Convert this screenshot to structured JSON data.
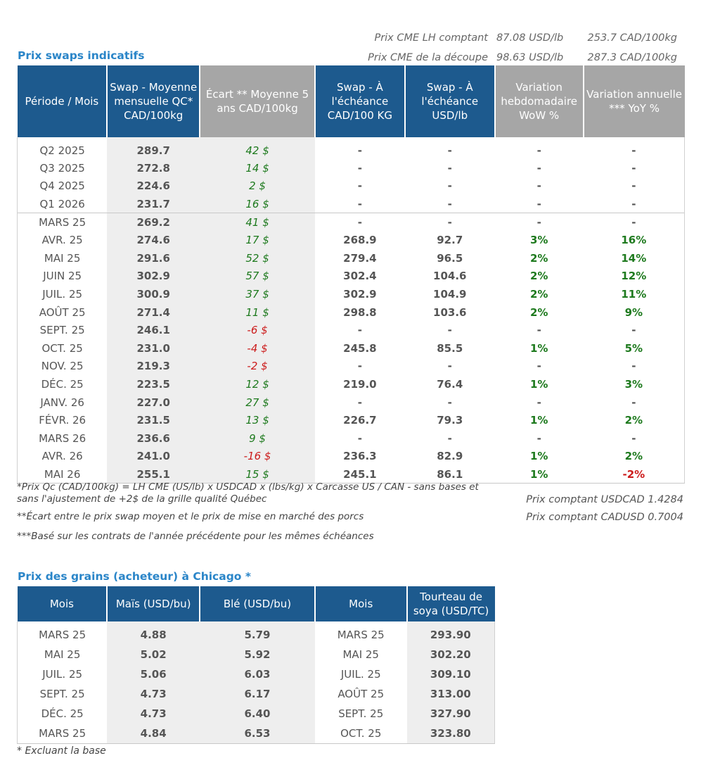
{
  "top_prices": [
    {
      "label": "Prix CME LH comptant",
      "usd": "87.08 USD/lb",
      "cad": "253.7 CAD/100kg"
    },
    {
      "label": "Prix CME de la découpe",
      "usd": "98.63 USD/lb",
      "cad": "287.3 CAD/100kg"
    }
  ],
  "swaps": {
    "title": "Prix swaps indicatifs",
    "headers": [
      "Période / Mois",
      "Swap - Moyenne mensuelle QC* CAD/100kg",
      "Écart ** Moyenne 5 ans CAD/100kg",
      "Swap - À l'échéance CAD/100 KG",
      "Swap - À l'échéance USD/lb",
      "Variation hebdomadaire WoW %",
      "Variation annuelle *** YoY %"
    ],
    "rows": [
      [
        "Q2 2025",
        "289.7",
        "42 $",
        "-",
        "-",
        "-",
        "-"
      ],
      [
        "Q3 2025",
        "272.8",
        "14 $",
        "-",
        "-",
        "-",
        "-"
      ],
      [
        "Q4 2025",
        "224.6",
        "2 $",
        "-",
        "-",
        "-",
        "-"
      ],
      [
        "Q1 2026",
        "231.7",
        "16 $",
        "-",
        "-",
        "-",
        "-"
      ],
      [
        "MARS 25",
        "269.2",
        "41 $",
        "-",
        "-",
        "-",
        "-"
      ],
      [
        "AVR. 25",
        "274.6",
        "17 $",
        "268.9",
        "92.7",
        "3%",
        "16%"
      ],
      [
        "MAI 25",
        "291.6",
        "52 $",
        "279.4",
        "96.5",
        "2%",
        "14%"
      ],
      [
        "JUIN 25",
        "302.9",
        "57 $",
        "302.4",
        "104.6",
        "2%",
        "12%"
      ],
      [
        "JUIL. 25",
        "300.9",
        "37 $",
        "302.9",
        "104.9",
        "2%",
        "11%"
      ],
      [
        "AOÛT 25",
        "271.4",
        "11 $",
        "298.8",
        "103.6",
        "2%",
        "9%"
      ],
      [
        "SEPT. 25",
        "246.1",
        "-6 $",
        "-",
        "-",
        "-",
        "-"
      ],
      [
        "OCT. 25",
        "231.0",
        "-4 $",
        "245.8",
        "85.5",
        "1%",
        "5%"
      ],
      [
        "NOV. 25",
        "219.3",
        "-2 $",
        "-",
        "-",
        "-",
        "-"
      ],
      [
        "DÉC. 25",
        "223.5",
        "12 $",
        "219.0",
        "76.4",
        "1%",
        "3%"
      ],
      [
        "JANV. 26",
        "227.0",
        "27 $",
        "-",
        "-",
        "-",
        "-"
      ],
      [
        "FÉVR. 26",
        "231.5",
        "13 $",
        "226.7",
        "79.3",
        "1%",
        "2%"
      ],
      [
        "MARS 26",
        "236.6",
        "9 $",
        "-",
        "-",
        "-",
        "-"
      ],
      [
        "AVR. 26",
        "241.0",
        "-16 $",
        "236.3",
        "82.9",
        "1%",
        "2%"
      ],
      [
        "MAI 26",
        "255.1",
        "15 $",
        "245.1",
        "86.1",
        "1%",
        "-2%"
      ]
    ]
  },
  "notes": {
    "n1": "*Prix Qc (CAD/100kg) = LH CME (US/lb) x USDCAD x (lbs/kg) x Carcasse US / CAN - sans bases et sans l'ajustement de +2$ de la grille qualité Québec",
    "n2": "**Écart entre le prix swap moyen et le prix de mise en marché des porcs",
    "n3": "***Basé sur les contrats de l'année précédente pour les mêmes échéances",
    "fx1": "Prix comptant USDCAD 1.4284",
    "fx2": "Prix comptant CADUSD 0.7004"
  },
  "grains": {
    "title": "Prix des grains (acheteur) à Chicago *",
    "headers": [
      "Mois",
      "Maïs (USD/bu)",
      "Blé (USD/bu)",
      "Mois",
      "Tourteau de soya (USD/TC)"
    ],
    "rows": [
      [
        "MARS 25",
        "4.88",
        "5.79",
        "MARS 25",
        "293.90"
      ],
      [
        "MAI 25",
        "5.02",
        "5.92",
        "MAI 25",
        "302.20"
      ],
      [
        "JUIL. 25",
        "5.06",
        "6.03",
        "JUIL. 25",
        "309.10"
      ],
      [
        "SEPT. 25",
        "4.73",
        "6.17",
        "AOÛT 25",
        "313.00"
      ],
      [
        "DÉC. 25",
        "4.73",
        "6.40",
        "SEPT. 25",
        "327.90"
      ],
      [
        "MARS 25",
        "4.84",
        "6.53",
        "OCT. 25",
        "323.80"
      ]
    ],
    "note": "* Excluant la base"
  }
}
